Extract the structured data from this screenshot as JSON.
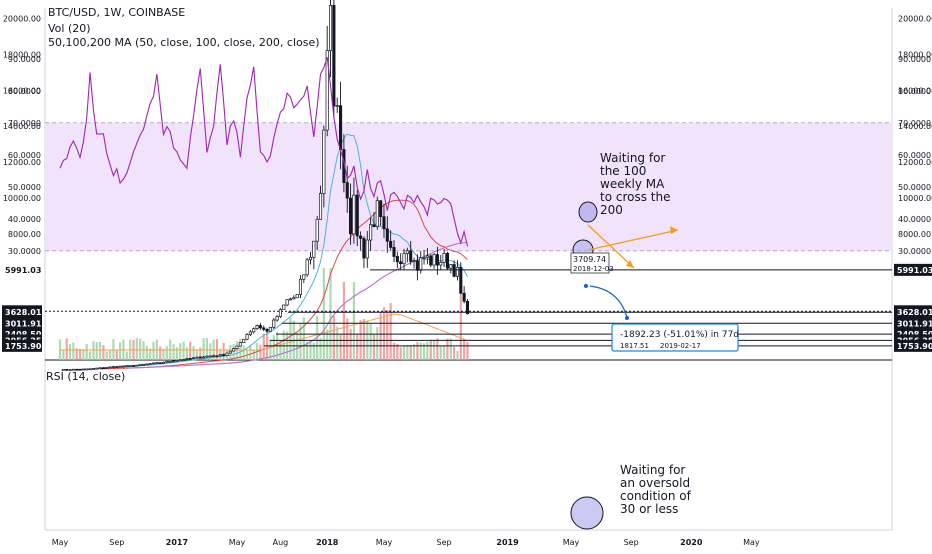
{
  "header": {
    "title": "BTC/USD, 1W, COINBASE",
    "vol": "Vol (20)",
    "ma": "50,100,200 MA (50, close, 100, close, 200, close)",
    "rsi": "RSI (14, close)"
  },
  "chart_data": [
    {
      "type": "line",
      "subtype": "candlestick",
      "title": "BTC/USD, 1W, COINBASE",
      "scale": "linear",
      "ylim": [
        1600,
        20300
      ],
      "price_ticks": [
        "20000.00",
        "18000.00",
        "16000.00",
        "14000.00",
        "12000.00",
        "10000.00",
        "8000.00"
      ],
      "x_ticks": [
        "May",
        "Sep",
        "2017",
        "May",
        "Aug",
        "2018",
        "May",
        "Sep",
        "2019",
        "May",
        "Sep",
        "2020",
        "May"
      ],
      "price_levels": [
        {
          "label": "5991.03",
          "value": 5991.03
        },
        {
          "label": "3680.23",
          "value": 3680.23
        },
        {
          "label": "3628.01",
          "value": 3628.01
        },
        {
          "label": "3011.91",
          "value": 3011.91
        },
        {
          "label": "2408.50",
          "value": 2408.5
        },
        {
          "label": "2056.25",
          "value": 2056.25
        },
        {
          "label": "1753.90",
          "value": 1753.9
        }
      ],
      "series": [
        {
          "name": "Vol (20)",
          "kind": "volume bars"
        },
        {
          "name": "50 MA",
          "color": "#4fb3d9"
        },
        {
          "name": "100 MA",
          "color": "#e04848"
        },
        {
          "name": "200 MA",
          "color": "#b27acd"
        }
      ],
      "annotations": {
        "text_ma": [
          "Waiting for",
          "the 100",
          "weekly MA",
          "to cross the",
          "200"
        ],
        "label_low_price": "3709.74",
        "label_low_date": "2018-12-03",
        "measure_main": "-1892.23 (-51.01%) in 77d",
        "measure_price": "1817.51",
        "measure_date": "2019-02-17"
      }
    },
    {
      "type": "line",
      "title": "RSI (14, close)",
      "ylim": [
        27,
        92
      ],
      "ticks": [
        "90.0000",
        "80.0000",
        "70.0000",
        "60.0000",
        "50.0000",
        "40.0000",
        "30.0000"
      ],
      "overbought": 70,
      "oversold": 30,
      "series": [
        {
          "name": "",
          "color": "#9c27b0"
        }
      ],
      "annotation": [
        "Waiting for",
        "an oversold",
        "condition of",
        "30 or less"
      ]
    }
  ],
  "colors": {
    "candle": "#131722",
    "vol_up": "#a5d6a7",
    "vol_down": "#ef9a9a",
    "ma50": "#4fb3d9",
    "ma100": "#e04848",
    "ma200": "#b27acd",
    "rsi": "#9c27b0",
    "rsi_band": "#f1e3fb",
    "arrow": "#f0a020",
    "measure": "#1565c0"
  }
}
